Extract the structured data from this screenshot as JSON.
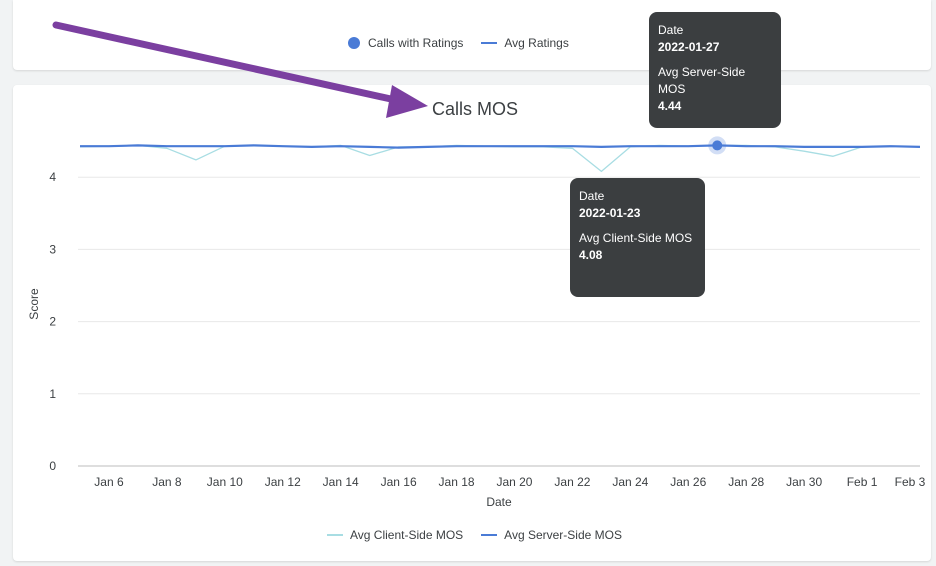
{
  "top_legend": {
    "dot_label": "Calls with Ratings",
    "line_label": "Avg Ratings"
  },
  "chart_data": {
    "type": "line",
    "title": "Calls MOS",
    "xlabel": "Date",
    "ylabel": "Score",
    "ylim": [
      0,
      4.45
    ],
    "yticks": [
      0,
      1,
      2,
      3,
      4
    ],
    "grid": "horizontal",
    "x_tick_labels": [
      "Jan 6",
      "Jan 8",
      "Jan 10",
      "Jan 12",
      "Jan 14",
      "Jan 16",
      "Jan 18",
      "Jan 20",
      "Jan 22",
      "Jan 24",
      "Jan 26",
      "Jan 28",
      "Jan 30",
      "Feb 1",
      "Feb 3"
    ],
    "x_start": "2022-01-05",
    "x_end": "2022-02-03",
    "series": [
      {
        "name": "Avg Client-Side MOS",
        "color": "#a8dde3",
        "values": [
          4.42,
          4.43,
          4.44,
          4.4,
          4.24,
          4.43,
          4.44,
          4.43,
          4.42,
          4.44,
          4.3,
          4.42,
          4.42,
          4.44,
          4.43,
          4.42,
          4.42,
          4.4,
          4.08,
          4.42,
          4.44,
          4.43,
          4.44,
          4.44,
          4.42,
          4.36,
          4.29,
          4.42,
          4.43,
          4.42
        ]
      },
      {
        "name": "Avg Server-Side MOS",
        "color": "#4a7bd6",
        "values": [
          4.43,
          4.43,
          4.44,
          4.43,
          4.43,
          4.43,
          4.44,
          4.43,
          4.42,
          4.43,
          4.42,
          4.41,
          4.42,
          4.43,
          4.43,
          4.43,
          4.43,
          4.43,
          4.42,
          4.43,
          4.43,
          4.43,
          4.44,
          4.43,
          4.43,
          4.42,
          4.42,
          4.42,
          4.43,
          4.42
        ]
      }
    ],
    "highlight_point": {
      "series": "Avg Server-Side MOS",
      "date": "2022-01-27",
      "value": 4.44
    }
  },
  "tooltips": {
    "server": {
      "date_label": "Date",
      "date_value": "2022-01-27",
      "metric_label": "Avg Server-Side MOS",
      "metric_value": "4.44"
    },
    "client": {
      "date_label": "Date",
      "date_value": "2022-01-23",
      "metric_label": "Avg Client-Side MOS",
      "metric_value": "4.08"
    }
  },
  "annotation": {
    "arrow_color": "#7b3fa0"
  },
  "colors": {
    "accent": "#4a7bd6",
    "client_line": "#a8dde3",
    "tooltip_bg": "#3b3e40"
  }
}
